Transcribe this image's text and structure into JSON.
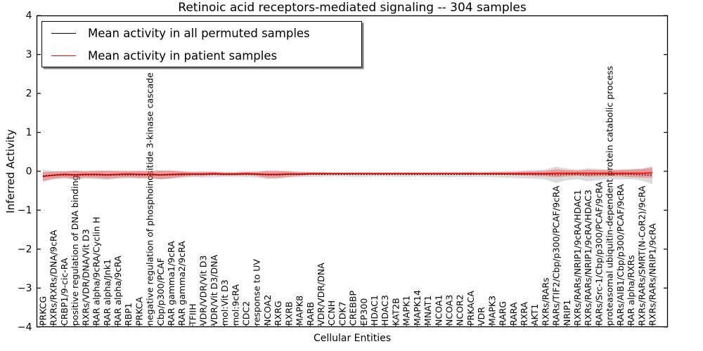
{
  "chart_data": {
    "type": "line",
    "title": "Retinoic acid receptors-mediated signaling -- 304 samples",
    "xlabel": "Cellular Entities",
    "ylabel": "Inferred Activity",
    "ylim": [
      -4,
      4
    ],
    "yticks": [
      4,
      3,
      2,
      1,
      0,
      -1,
      -2,
      -3,
      -4
    ],
    "grid": false,
    "legend_position": "upper left",
    "legend": [
      {
        "label": "Mean activity in all permuted samples",
        "color": "#000000"
      },
      {
        "label": "Mean activity in patient samples",
        "color": "#ff0000"
      }
    ],
    "categories": [
      "PRKCG",
      "RXRs/RXRs/DNA/9cRA",
      "CRBP1/9-cic-RA",
      "positive regulation of DNA binding",
      "RXRs/VDR/DNA/Vit D3",
      "RAR alpha/9cRA/Cyclin H",
      "RAR alpha/Jnk1",
      "RAR alpha/9cRA",
      "RBP1",
      "PRKCA",
      "negative regulation of phosphoinositide 3-kinase cascade",
      "Cbp/p300/PCAF",
      "RAR gamma1/9cRA",
      "RAR gamma2/9cRA",
      "TFIIH",
      "VDR/VDR/Vit D3",
      "VDR/Vit D3/DNA",
      "mol:Vit D3",
      "mol:9cRA",
      "CDC2",
      "response to UV",
      "NCOA2",
      "RXRG",
      "RXRB",
      "MAPK8",
      "RARB",
      "VDR/VDR/DNA",
      "CCNH",
      "CDK7",
      "CREBBP",
      "EP300",
      "HDAC1",
      "HDAC3",
      "KAT2B",
      "MAPK1",
      "MAPK14",
      "MNAT1",
      "NCOA1",
      "NCOA3",
      "NCOR2",
      "PRKACA",
      "VDR",
      "MAPK3",
      "RARG",
      "RARA",
      "RXRA",
      "AKT1",
      "RXRs/RARs",
      "RARs/TIF2/Cbp/p300/PCAF/9cRA",
      "NRIP1",
      "RXRs/RARs/NRIP1/9cRA/HDAC1",
      "RXRs/RARs/NRIP1/9cRA/HDAC3",
      "RARs/Src-1/Cbp/p300/PCAF/9cRA",
      "proteasomal ubiquitin-dependent protein catabolic process",
      "RARs/AIB1/Cbp/p300/PCAF/9cRA",
      "RAR alpha/RXRs",
      "RXRs/RARs/SMRT(N-CoR2)/9cRA",
      "RXRs/RARs/NRIP1/9cRA"
    ],
    "series": [
      {
        "name": "Mean activity in all permuted samples",
        "color": "#000000",
        "style": "dotted",
        "values": [
          -0.12,
          -0.1,
          -0.09,
          -0.1,
          -0.09,
          -0.09,
          -0.1,
          -0.09,
          -0.09,
          -0.09,
          -0.09,
          -0.1,
          -0.09,
          -0.09,
          -0.08,
          -0.08,
          -0.08,
          -0.08,
          -0.08,
          -0.08,
          -0.08,
          -0.09,
          -0.09,
          -0.08,
          -0.08,
          -0.08,
          -0.08,
          -0.08,
          -0.08,
          -0.08,
          -0.08,
          -0.08,
          -0.08,
          -0.08,
          -0.08,
          -0.08,
          -0.08,
          -0.08,
          -0.08,
          -0.08,
          -0.08,
          -0.08,
          -0.08,
          -0.08,
          -0.08,
          -0.08,
          -0.08,
          -0.08,
          -0.09,
          -0.08,
          -0.08,
          -0.09,
          -0.08,
          -0.08,
          -0.08,
          -0.08,
          -0.09,
          -0.1
        ]
      },
      {
        "name": "Mean activity in patient samples",
        "color": "#ff0000",
        "style": "solid",
        "values": [
          -0.13,
          -0.1,
          -0.08,
          -0.09,
          -0.08,
          -0.08,
          -0.09,
          -0.08,
          -0.07,
          -0.08,
          -0.08,
          -0.09,
          -0.08,
          -0.07,
          -0.07,
          -0.07,
          -0.06,
          -0.07,
          -0.07,
          -0.06,
          -0.07,
          -0.08,
          -0.08,
          -0.07,
          -0.07,
          -0.06,
          -0.06,
          -0.06,
          -0.06,
          -0.06,
          -0.06,
          -0.06,
          -0.06,
          -0.06,
          -0.06,
          -0.06,
          -0.06,
          -0.06,
          -0.06,
          -0.06,
          -0.06,
          -0.06,
          -0.06,
          -0.06,
          -0.06,
          -0.06,
          -0.06,
          -0.06,
          -0.05,
          -0.05,
          -0.05,
          -0.05,
          -0.05,
          -0.05,
          -0.05,
          -0.05,
          -0.05,
          -0.04
        ]
      }
    ],
    "bands": [
      {
        "name": "permuted samples std band",
        "series": 0,
        "color": "#999999",
        "opacity": 0.35,
        "half_widths": [
          0.16,
          0.11,
          0.09,
          0.12,
          0.1,
          0.11,
          0.12,
          0.1,
          0.09,
          0.1,
          0.1,
          0.11,
          0.1,
          0.08,
          0.07,
          0.08,
          0.07,
          0.06,
          0.06,
          0.07,
          0.08,
          0.11,
          0.1,
          0.08,
          0.07,
          0.06,
          0.06,
          0.05,
          0.05,
          0.06,
          0.06,
          0.05,
          0.05,
          0.06,
          0.06,
          0.05,
          0.06,
          0.06,
          0.07,
          0.06,
          0.07,
          0.06,
          0.07,
          0.08,
          0.09,
          0.1,
          0.11,
          0.13,
          0.21,
          0.15,
          0.12,
          0.17,
          0.14,
          0.12,
          0.13,
          0.12,
          0.15,
          0.23
        ]
      },
      {
        "name": "patient samples std band",
        "series": 1,
        "color": "#ff2222",
        "opacity": 0.35,
        "half_widths": [
          0.11,
          0.09,
          0.08,
          0.1,
          0.08,
          0.09,
          0.1,
          0.09,
          0.08,
          0.09,
          0.09,
          0.11,
          0.1,
          0.07,
          0.05,
          0.05,
          0.04,
          0.04,
          0.04,
          0.04,
          0.05,
          0.09,
          0.09,
          0.07,
          0.05,
          0.03,
          0.03,
          0.02,
          0.02,
          0.02,
          0.02,
          0.02,
          0.02,
          0.02,
          0.02,
          0.02,
          0.02,
          0.02,
          0.02,
          0.02,
          0.03,
          0.02,
          0.03,
          0.03,
          0.04,
          0.05,
          0.06,
          0.07,
          0.1,
          0.08,
          0.07,
          0.09,
          0.08,
          0.08,
          0.08,
          0.1,
          0.11,
          0.13
        ]
      }
    ]
  }
}
